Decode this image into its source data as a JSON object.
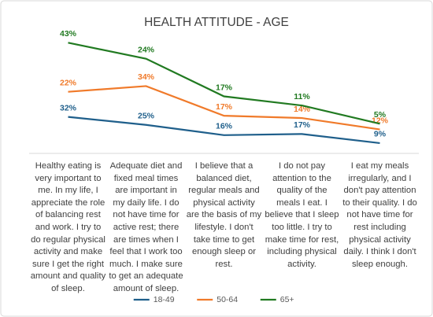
{
  "chart_data": {
    "type": "line",
    "stacked": true,
    "title": "HEALTH ATTITUDE - AGE",
    "categories": [
      "Healthy eating is very important to me. In my life, I appreciate the role of balancing rest and work. I try to do regular physical activity and make sure I get the right amount and quality of sleep.",
      "Adequate diet and fixed meal times are important in my daily life. I do not have time for active rest; there are times when I feel that I work too much. I make sure to get an adequate amount of sleep.",
      "I believe that a balanced diet, regular meals and physical activity are the basis of my lifestyle. I don't take time to get enough sleep or rest.",
      "I do not pay attention to the quality of the meals I eat. I believe that I sleep too little. I try to make time for rest, including physical activity.",
      "I eat my meals irregularly, and I don't pay attention to their quality. I do not have time for rest including physical activity daily. I think I don't sleep enough."
    ],
    "series": [
      {
        "name": "18-49",
        "color": "#1f5f8b",
        "values": [
          32,
          25,
          16,
          17,
          9
        ],
        "value_labels": [
          "32%",
          "25%",
          "16%",
          "17%",
          "9%"
        ]
      },
      {
        "name": "50-64",
        "color": "#f07a2a",
        "values": [
          22,
          34,
          17,
          14,
          12
        ],
        "value_labels": [
          "22%",
          "34%",
          "17%",
          "14%",
          "12%"
        ]
      },
      {
        "name": "65+",
        "color": "#217a21",
        "values": [
          43,
          24,
          17,
          11,
          5
        ],
        "value_labels": [
          "43%",
          "24%",
          "17%",
          "11%",
          "5%"
        ]
      }
    ],
    "ylim": [
      0,
      100
    ],
    "legend": "bottom"
  }
}
